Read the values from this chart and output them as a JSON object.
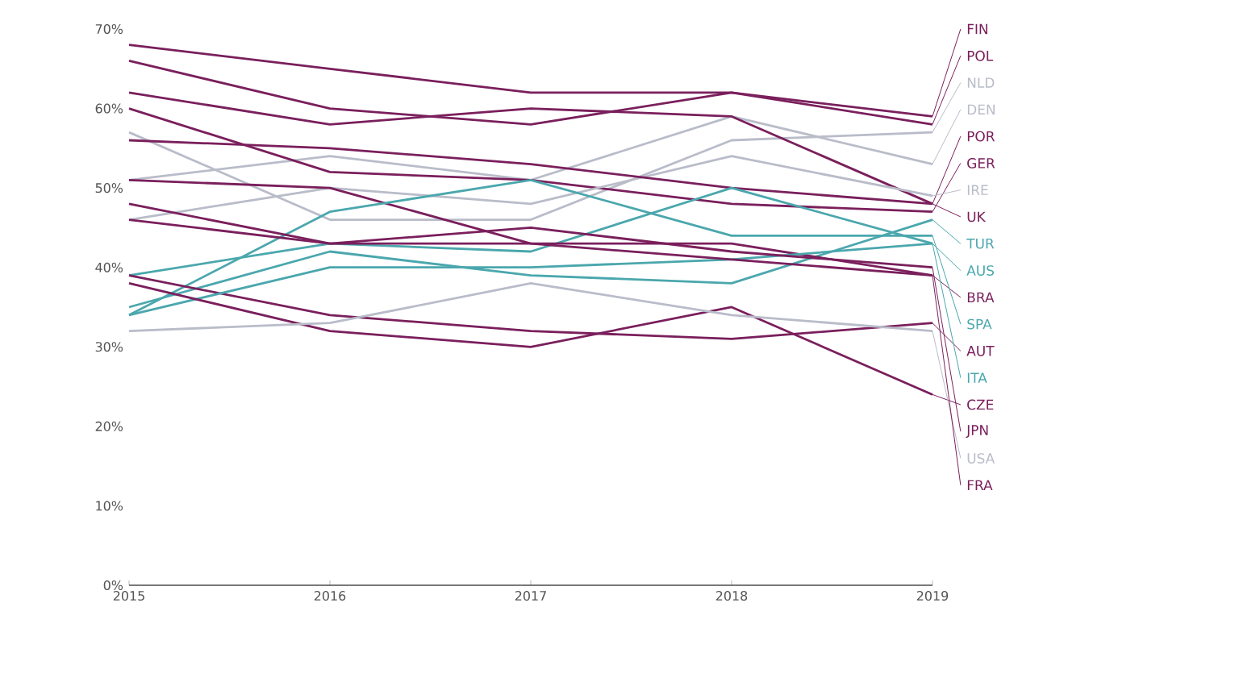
{
  "chart_data": {
    "type": "line",
    "x": [
      2015,
      2016,
      2017,
      2018,
      2019
    ],
    "xlim": [
      2015,
      2019
    ],
    "xticks": [
      2015,
      2016,
      2017,
      2018,
      2019
    ],
    "ylim": [
      0,
      70
    ],
    "yticks": [
      {
        "value": 0,
        "label": "0%"
      },
      {
        "value": 10,
        "label": "10%"
      },
      {
        "value": 20,
        "label": "20%"
      },
      {
        "value": 30,
        "label": "30%"
      },
      {
        "value": 40,
        "label": "40%"
      },
      {
        "value": 50,
        "label": "50%"
      },
      {
        "value": 60,
        "label": "60%"
      },
      {
        "value": 70,
        "label": "70%"
      }
    ],
    "grid": false,
    "legend": "right",
    "series": [
      {
        "name": "FIN",
        "color": "#7a1f5c",
        "values": [
          68,
          65,
          62,
          62,
          59
        ]
      },
      {
        "name": "POL",
        "color": "#7a1f5c",
        "values": [
          66,
          60,
          58,
          62,
          58
        ]
      },
      {
        "name": "NLD",
        "color": "#b9bcc9",
        "values": [
          57,
          46,
          46,
          56,
          57
        ]
      },
      {
        "name": "DEN",
        "color": "#b9bcc9",
        "values": [
          51,
          54,
          51,
          59,
          53
        ]
      },
      {
        "name": "POR",
        "color": "#7a1f5c",
        "values": [
          62,
          58,
          60,
          59,
          48
        ]
      },
      {
        "name": "GER",
        "color": "#7a1f5c",
        "values": [
          60,
          52,
          51,
          48,
          47
        ]
      },
      {
        "name": "IRE",
        "color": "#b9bcc9",
        "values": [
          46,
          50,
          48,
          54,
          49
        ]
      },
      {
        "name": "UK",
        "color": "#7a1f5c",
        "values": [
          56,
          55,
          53,
          50,
          48
        ]
      },
      {
        "name": "TUR",
        "color": "#4aa7ad",
        "values": [
          35,
          42,
          39,
          38,
          46
        ]
      },
      {
        "name": "AUS",
        "color": "#4aa7ad",
        "values": [
          39,
          43,
          42,
          50,
          43
        ]
      },
      {
        "name": "BRA",
        "color": "#7a1f5c",
        "values": [
          51,
          50,
          43,
          43,
          39
        ]
      },
      {
        "name": "SPA",
        "color": "#4aa7ad",
        "values": [
          34,
          47,
          51,
          44,
          44
        ]
      },
      {
        "name": "AUT",
        "color": "#7a1f5c",
        "values": [
          39,
          34,
          32,
          31,
          33
        ]
      },
      {
        "name": "ITA",
        "color": "#4aa7ad",
        "values": [
          34,
          40,
          40,
          41,
          43
        ]
      },
      {
        "name": "CZE",
        "color": "#7a1f5c",
        "values": [
          38,
          32,
          30,
          35,
          24
        ]
      },
      {
        "name": "JPN",
        "color": "#7a1f5c",
        "values": [
          48,
          43,
          45,
          42,
          40
        ]
      },
      {
        "name": "USA",
        "color": "#b9bcc9",
        "values": [
          32,
          33,
          38,
          34,
          32
        ]
      },
      {
        "name": "FRA",
        "color": "#7a1f5c",
        "values": [
          46,
          43,
          43,
          41,
          39
        ]
      }
    ]
  }
}
